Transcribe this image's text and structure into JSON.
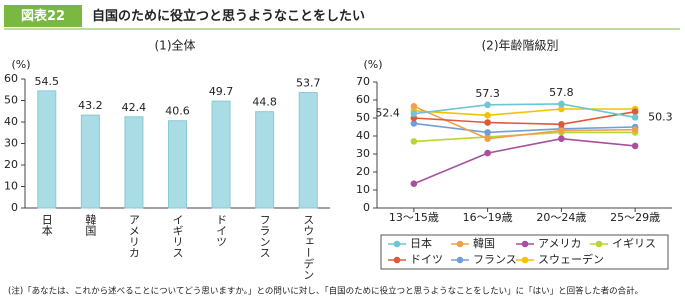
{
  "header": {
    "label": "図表22",
    "title": "自国のために役立つと思うようなことをしたい"
  },
  "chart_data": [
    {
      "type": "bar",
      "title": "(1)全体",
      "y_label": "(%)",
      "categories": [
        "日本",
        "韓国",
        "アメリカ",
        "イギリス",
        "ドイツ",
        "フランス",
        "スウェーデン"
      ],
      "values": [
        54.5,
        43.2,
        42.4,
        40.6,
        49.7,
        44.8,
        53.7
      ],
      "color": "#a9dce5",
      "ylim": [
        0,
        60
      ],
      "yticks": [
        0,
        10,
        20,
        30,
        40,
        50,
        60
      ],
      "grid": false
    },
    {
      "type": "line",
      "title": "(2)年齢階級別",
      "y_label": "(%)",
      "categories": [
        "13～15歳",
        "16～19歳",
        "20～24歳",
        "25～29歳"
      ],
      "series": [
        {
          "name": "日本",
          "color": "#6ec6d3",
          "values": [
            52.4,
            57.3,
            57.8,
            50.3
          ]
        },
        {
          "name": "韓国",
          "color": "#f0a04c",
          "values": [
            56.5,
            38.5,
            43,
            43.5
          ]
        },
        {
          "name": "アメリカ",
          "color": "#a8509e",
          "values": [
            13.5,
            30.5,
            38.5,
            34.5
          ]
        },
        {
          "name": "イギリス",
          "color": "#b9d531",
          "values": [
            37,
            39.5,
            42,
            42
          ]
        },
        {
          "name": "ドイツ",
          "color": "#e0583a",
          "values": [
            50,
            47.5,
            46.5,
            53.5
          ]
        },
        {
          "name": "フランス",
          "color": "#6f9fd8",
          "values": [
            47,
            42,
            44,
            45
          ]
        },
        {
          "name": "スウェーデン",
          "color": "#f4c300",
          "values": [
            54,
            51.5,
            55,
            55
          ]
        }
      ],
      "ylim": [
        0,
        70
      ],
      "yticks": [
        0,
        10,
        20,
        30,
        40,
        50,
        60,
        70
      ],
      "grid": false
    }
  ],
  "footnote": "(注)「あなたは、これから述べることについてどう思いますか。」との問いに対し、「自国のために役立つと思うようなことをしたい」に「はい」と回答した者の合計。"
}
